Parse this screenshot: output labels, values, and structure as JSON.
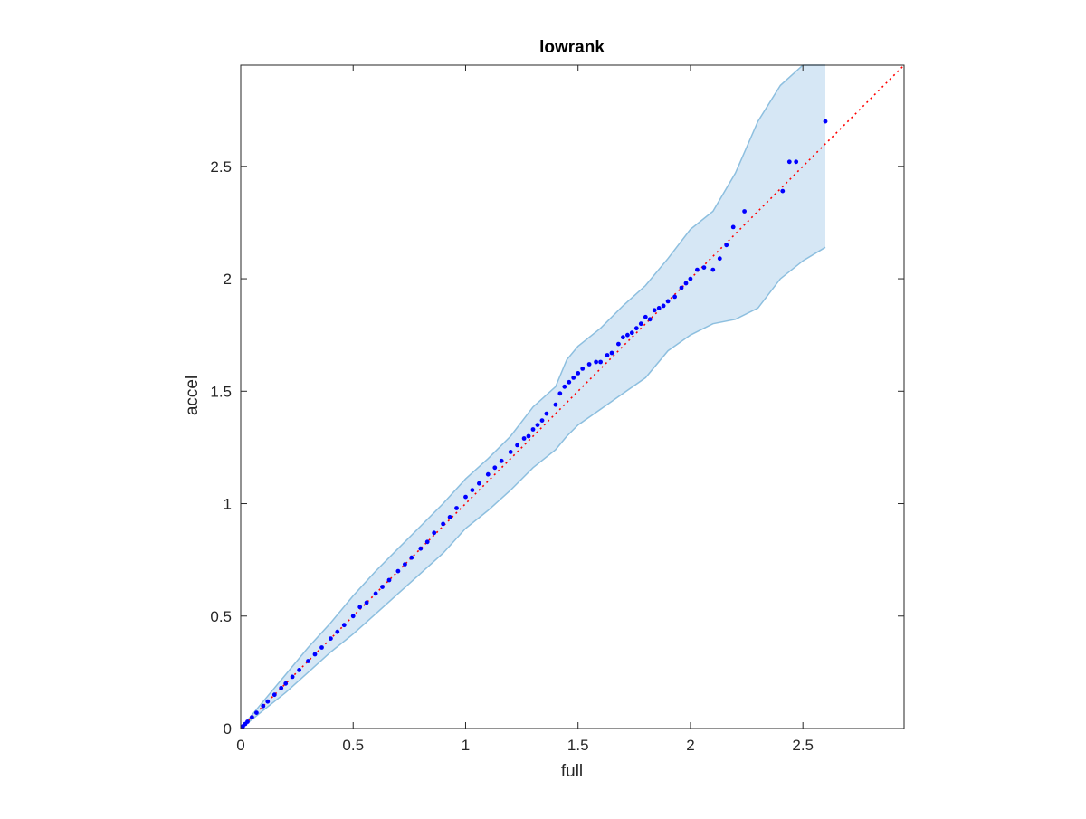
{
  "chart_data": {
    "type": "scatter",
    "title": "lowrank",
    "xlabel": "full",
    "ylabel": "accel",
    "xlim": [
      0,
      2.95
    ],
    "ylim": [
      0,
      2.95
    ],
    "xticks": [
      0,
      0.5,
      1,
      1.5,
      2,
      2.5
    ],
    "yticks": [
      0,
      0.5,
      1,
      1.5,
      2,
      2.5
    ],
    "xtick_labels": [
      "0",
      "0.5",
      "1",
      "1.5",
      "2",
      "2.5"
    ],
    "ytick_labels": [
      "0",
      "0.5",
      "1",
      "1.5",
      "2",
      "2.5"
    ],
    "grid": false,
    "legend": "none",
    "colors": {
      "points": "#0000ff",
      "reference_line": "#ff0000",
      "band_fill": "#d6e7f5",
      "band_edge": "#8dbfdf",
      "axes": "#262626"
    },
    "reference_line": {
      "x": [
        0,
        2.95
      ],
      "y": [
        0,
        2.95
      ],
      "style": "dotted"
    },
    "band": {
      "x": [
        0,
        0.1,
        0.2,
        0.3,
        0.4,
        0.5,
        0.6,
        0.7,
        0.8,
        0.9,
        1.0,
        1.1,
        1.2,
        1.3,
        1.4,
        1.45,
        1.5,
        1.6,
        1.7,
        1.8,
        1.9,
        2.0,
        2.1,
        2.2,
        2.3,
        2.4,
        2.5,
        2.6
      ],
      "upper": [
        0,
        0.12,
        0.24,
        0.36,
        0.47,
        0.59,
        0.7,
        0.8,
        0.9,
        1.0,
        1.11,
        1.2,
        1.3,
        1.43,
        1.52,
        1.64,
        1.7,
        1.78,
        1.88,
        1.97,
        2.09,
        2.22,
        2.3,
        2.47,
        2.7,
        2.86,
        2.97,
        2.97
      ],
      "lower": [
        0,
        0.08,
        0.16,
        0.25,
        0.34,
        0.42,
        0.51,
        0.6,
        0.69,
        0.78,
        0.89,
        0.97,
        1.06,
        1.16,
        1.24,
        1.3,
        1.35,
        1.42,
        1.49,
        1.56,
        1.68,
        1.75,
        1.8,
        1.82,
        1.87,
        2.0,
        2.08,
        2.14
      ]
    },
    "series": [
      {
        "x": [
          0.01,
          0.02,
          0.03,
          0.05,
          0.07,
          0.1,
          0.12,
          0.15,
          0.18,
          0.2,
          0.23,
          0.26,
          0.3,
          0.33,
          0.36,
          0.4,
          0.43,
          0.46,
          0.5,
          0.53,
          0.56,
          0.6,
          0.63,
          0.66,
          0.7,
          0.73,
          0.76,
          0.8,
          0.83,
          0.86,
          0.9,
          0.93,
          0.96,
          1.0,
          1.03,
          1.06,
          1.1,
          1.13,
          1.16,
          1.2,
          1.23,
          1.26,
          1.28,
          1.3,
          1.32,
          1.34,
          1.36,
          1.4,
          1.42,
          1.44,
          1.46,
          1.48,
          1.5,
          1.52,
          1.55,
          1.58,
          1.6,
          1.63,
          1.65,
          1.68,
          1.7,
          1.72,
          1.74,
          1.76,
          1.78,
          1.8,
          1.82,
          1.84,
          1.86,
          1.88,
          1.9,
          1.93,
          1.96,
          1.98,
          2.0,
          2.03,
          2.06,
          2.1,
          2.13,
          2.16,
          2.19,
          2.24,
          2.41,
          2.44,
          2.47,
          2.6
        ],
        "y": [
          0.01,
          0.02,
          0.03,
          0.05,
          0.07,
          0.1,
          0.12,
          0.15,
          0.18,
          0.2,
          0.23,
          0.26,
          0.3,
          0.33,
          0.36,
          0.4,
          0.43,
          0.46,
          0.5,
          0.54,
          0.56,
          0.6,
          0.63,
          0.66,
          0.7,
          0.73,
          0.76,
          0.8,
          0.83,
          0.87,
          0.91,
          0.94,
          0.98,
          1.03,
          1.06,
          1.09,
          1.13,
          1.16,
          1.19,
          1.23,
          1.26,
          1.29,
          1.3,
          1.33,
          1.35,
          1.37,
          1.4,
          1.44,
          1.49,
          1.52,
          1.54,
          1.56,
          1.58,
          1.6,
          1.62,
          1.63,
          1.63,
          1.66,
          1.67,
          1.71,
          1.74,
          1.75,
          1.76,
          1.78,
          1.8,
          1.83,
          1.82,
          1.86,
          1.87,
          1.88,
          1.9,
          1.92,
          1.96,
          1.98,
          2.0,
          2.04,
          2.05,
          2.04,
          2.09,
          2.15,
          2.23,
          2.3,
          2.39,
          2.52,
          2.52,
          2.7
        ]
      }
    ]
  }
}
